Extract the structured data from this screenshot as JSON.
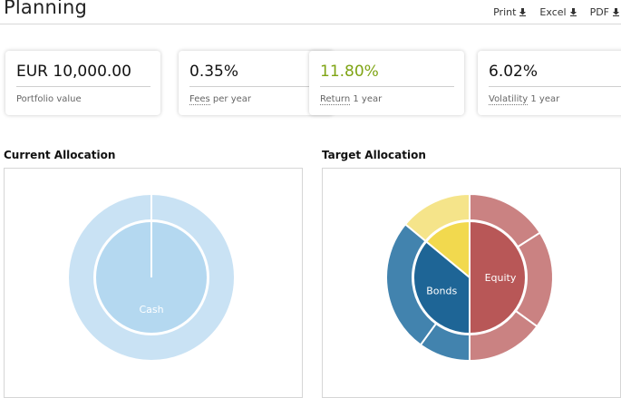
{
  "header": {
    "title": "Planning",
    "exports": [
      "Print",
      "Excel",
      "PDF"
    ]
  },
  "stats": [
    {
      "value": "EUR 10,000.00",
      "label": "Portfolio value",
      "suffix": ""
    },
    {
      "value": "0.35%",
      "label": "Fees",
      "suffix": " per year"
    },
    {
      "value": "11.80%",
      "label": "Return",
      "suffix": " 1 year"
    },
    {
      "value": "6.02%",
      "label": "Volatility",
      "suffix": " 1 year"
    }
  ],
  "colors": {
    "return_value": "#7fa414"
  },
  "chart_data": [
    {
      "type": "pie",
      "title": "Current Allocation",
      "inner": [
        {
          "name": "Cash",
          "value": 100,
          "color": "#b4d8f0"
        }
      ],
      "outer": [
        {
          "parent": "Cash",
          "value": 100,
          "color": "#c9e2f4"
        }
      ]
    },
    {
      "type": "pie",
      "title": "Target Allocation",
      "inner": [
        {
          "name": "Equity",
          "value": 50,
          "color": "#b85757"
        },
        {
          "name": "Bonds",
          "value": 36,
          "color": "#1e6596"
        },
        {
          "name": "",
          "value": 14,
          "color": "#f2d94e"
        }
      ],
      "outer": [
        {
          "parent": "Equity",
          "value": 16,
          "color": "#ca8282"
        },
        {
          "parent": "Equity",
          "value": 19,
          "color": "#ca8282"
        },
        {
          "parent": "Equity",
          "value": 15,
          "color": "#ca8282"
        },
        {
          "parent": "Bonds",
          "value": 10,
          "color": "#4283ae"
        },
        {
          "parent": "Bonds",
          "value": 26,
          "color": "#4283ae"
        },
        {
          "parent": "",
          "value": 14,
          "color": "#f5e48a"
        }
      ]
    }
  ]
}
